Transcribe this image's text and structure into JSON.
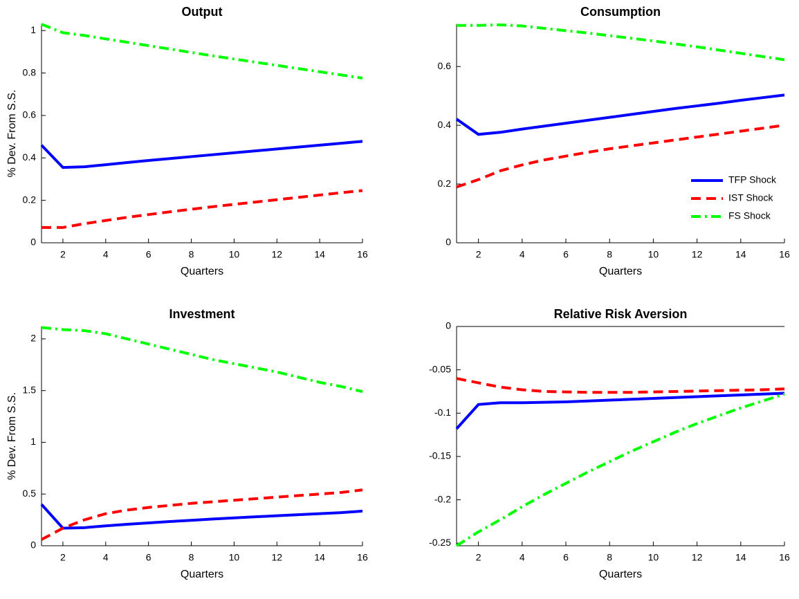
{
  "chart_data": [
    {
      "type": "line",
      "title": "Output",
      "xlabel": "Quarters",
      "ylabel": "% Dev. From S.S.",
      "x": [
        1,
        2,
        3,
        4,
        5,
        6,
        7,
        8,
        9,
        10,
        11,
        12,
        13,
        14,
        15,
        16
      ],
      "xlim": [
        1,
        16
      ],
      "xticks": [
        2,
        4,
        6,
        8,
        10,
        12,
        14,
        16
      ],
      "ylim": [
        0,
        1.03
      ],
      "yticks": [
        0,
        0.2,
        0.4,
        0.6,
        0.8,
        1
      ],
      "series": [
        {
          "color": "#0000ff",
          "style": "solid",
          "values": [
            0.46,
            0.355,
            0.358,
            0.368,
            0.378,
            0.388,
            0.397,
            0.406,
            0.415,
            0.424,
            0.433,
            0.442,
            0.451,
            0.46,
            0.469,
            0.478
          ]
        },
        {
          "color": "#ff0000",
          "style": "dashed",
          "values": [
            0.072,
            0.072,
            0.09,
            0.105,
            0.12,
            0.133,
            0.146,
            0.158,
            0.17,
            0.181,
            0.192,
            0.203,
            0.214,
            0.225,
            0.236,
            0.246
          ]
        },
        {
          "color": "#00ff00",
          "style": "dashdot",
          "values": [
            1.03,
            0.99,
            0.977,
            0.961,
            0.945,
            0.929,
            0.913,
            0.897,
            0.881,
            0.866,
            0.851,
            0.836,
            0.821,
            0.806,
            0.791,
            0.776
          ]
        }
      ]
    },
    {
      "type": "line",
      "title": "Consumption",
      "xlabel": "Quarters",
      "legend": "lower right",
      "x": [
        1,
        2,
        3,
        4,
        5,
        6,
        7,
        8,
        9,
        10,
        11,
        12,
        13,
        14,
        15,
        16
      ],
      "xlim": [
        1,
        16
      ],
      "xticks": [
        2,
        4,
        6,
        8,
        10,
        12,
        14,
        16
      ],
      "ylim": [
        0,
        0.744
      ],
      "yticks": [
        0,
        0.2,
        0.4,
        0.6
      ],
      "series": [
        {
          "name": "TFP Shock",
          "color": "#0000ff",
          "style": "solid",
          "values": [
            0.421,
            0.369,
            0.376,
            0.387,
            0.397,
            0.407,
            0.417,
            0.427,
            0.437,
            0.447,
            0.457,
            0.466,
            0.475,
            0.485,
            0.494,
            0.503
          ]
        },
        {
          "name": "IST Shock",
          "color": "#ff0000",
          "style": "dashed",
          "values": [
            0.19,
            0.215,
            0.245,
            0.265,
            0.282,
            0.295,
            0.308,
            0.32,
            0.33,
            0.34,
            0.35,
            0.36,
            0.37,
            0.38,
            0.39,
            0.4
          ]
        },
        {
          "name": "FS Shock",
          "color": "#00ff00",
          "style": "dashdot",
          "values": [
            0.74,
            0.74,
            0.742,
            0.738,
            0.73,
            0.722,
            0.714,
            0.705,
            0.696,
            0.687,
            0.677,
            0.667,
            0.656,
            0.645,
            0.634,
            0.623
          ]
        }
      ]
    },
    {
      "type": "line",
      "title": "Investment",
      "xlabel": "Quarters",
      "ylabel": "% Dev. From S.S.",
      "x": [
        1,
        2,
        3,
        4,
        5,
        6,
        7,
        8,
        9,
        10,
        11,
        12,
        13,
        14,
        15,
        16
      ],
      "xlim": [
        1,
        16
      ],
      "xticks": [
        2,
        4,
        6,
        8,
        10,
        12,
        14,
        16
      ],
      "ylim": [
        0,
        2.12
      ],
      "yticks": [
        0,
        0.5,
        1,
        1.5,
        2
      ],
      "series": [
        {
          "color": "#0000ff",
          "style": "solid",
          "values": [
            0.4,
            0.17,
            0.175,
            0.192,
            0.207,
            0.221,
            0.234,
            0.246,
            0.258,
            0.269,
            0.28,
            0.29,
            0.3,
            0.31,
            0.32,
            0.335
          ]
        },
        {
          "color": "#ff0000",
          "style": "dashed",
          "values": [
            0.06,
            0.17,
            0.25,
            0.31,
            0.345,
            0.37,
            0.39,
            0.41,
            0.425,
            0.44,
            0.455,
            0.47,
            0.485,
            0.5,
            0.515,
            0.54
          ]
        },
        {
          "color": "#00ff00",
          "style": "dashdot",
          "values": [
            2.11,
            2.09,
            2.08,
            2.05,
            2.0,
            1.95,
            1.9,
            1.85,
            1.8,
            1.76,
            1.72,
            1.68,
            1.63,
            1.58,
            1.54,
            1.49
          ]
        }
      ]
    },
    {
      "type": "line",
      "title": "Relative Risk Aversion",
      "xlabel": "Quarters",
      "x": [
        1,
        2,
        3,
        4,
        5,
        6,
        7,
        8,
        9,
        10,
        11,
        12,
        13,
        14,
        15,
        16
      ],
      "xlim": [
        1,
        16
      ],
      "xticks": [
        2,
        4,
        6,
        8,
        10,
        12,
        14,
        16
      ],
      "ylim": [
        -0.253,
        0
      ],
      "yticks": [
        -0.25,
        -0.2,
        -0.15,
        -0.1,
        -0.05,
        0
      ],
      "series": [
        {
          "color": "#0000ff",
          "style": "solid",
          "values": [
            -0.118,
            -0.09,
            -0.088,
            -0.088,
            -0.0875,
            -0.087,
            -0.086,
            -0.085,
            -0.084,
            -0.083,
            -0.082,
            -0.081,
            -0.08,
            -0.079,
            -0.078,
            -0.077
          ]
        },
        {
          "color": "#ff0000",
          "style": "dashed",
          "values": [
            -0.06,
            -0.065,
            -0.07,
            -0.073,
            -0.075,
            -0.0755,
            -0.076,
            -0.076,
            -0.076,
            -0.0755,
            -0.075,
            -0.0745,
            -0.074,
            -0.0735,
            -0.073,
            -0.072
          ]
        },
        {
          "color": "#00ff00",
          "style": "dashdot",
          "values": [
            -0.253,
            -0.237,
            -0.223,
            -0.208,
            -0.194,
            -0.181,
            -0.168,
            -0.156,
            -0.144,
            -0.133,
            -0.122,
            -0.112,
            -0.103,
            -0.094,
            -0.086,
            -0.078
          ]
        }
      ]
    }
  ]
}
